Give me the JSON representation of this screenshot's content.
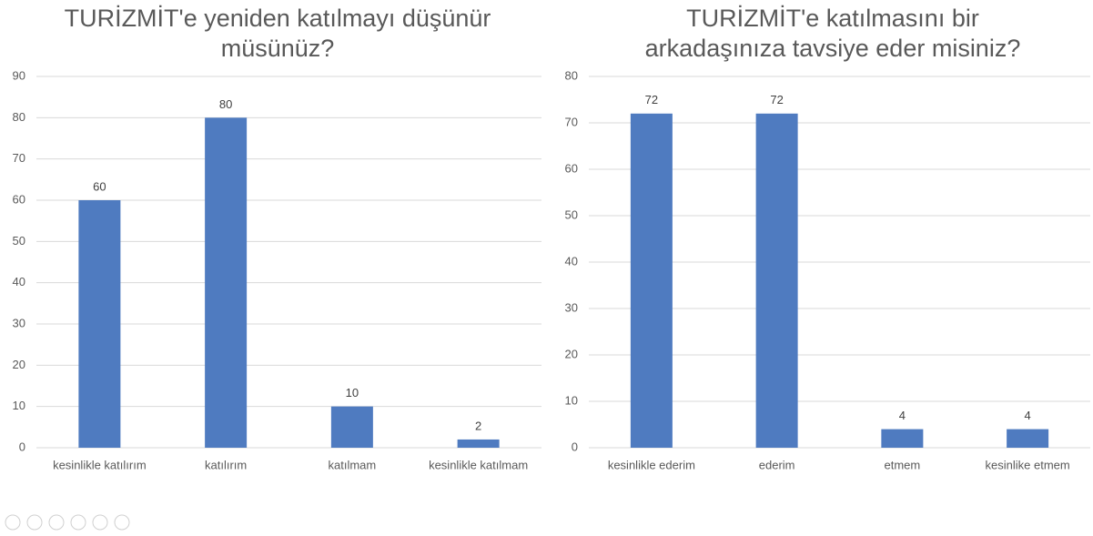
{
  "chart_data": [
    {
      "type": "bar",
      "title": "TURİZMİT'e yeniden katılmayı düşünür müsünüz?",
      "categories": [
        "kesinlikle katılırım",
        "katılırım",
        "katılmam",
        "kesinlikle katılmam"
      ],
      "values": [
        60,
        80,
        10,
        2
      ],
      "color": "#4f7bc0",
      "ylim": [
        0,
        90
      ],
      "yticks": [
        0,
        10,
        20,
        30,
        40,
        50,
        60,
        70,
        80,
        90
      ],
      "grid": true
    },
    {
      "type": "bar",
      "title": "TURİZMİT'e katılmasını bir arkadaşınıza tavsiye eder misiniz?",
      "categories": [
        "kesinlikle ederim",
        "ederim",
        "etmem",
        "kesinlike etmem"
      ],
      "values": [
        72,
        72,
        4,
        4
      ],
      "color": "#4f7bc0",
      "ylim": [
        0,
        80
      ],
      "yticks": [
        0,
        10,
        20,
        30,
        40,
        50,
        60,
        70,
        80
      ],
      "grid": true
    }
  ]
}
